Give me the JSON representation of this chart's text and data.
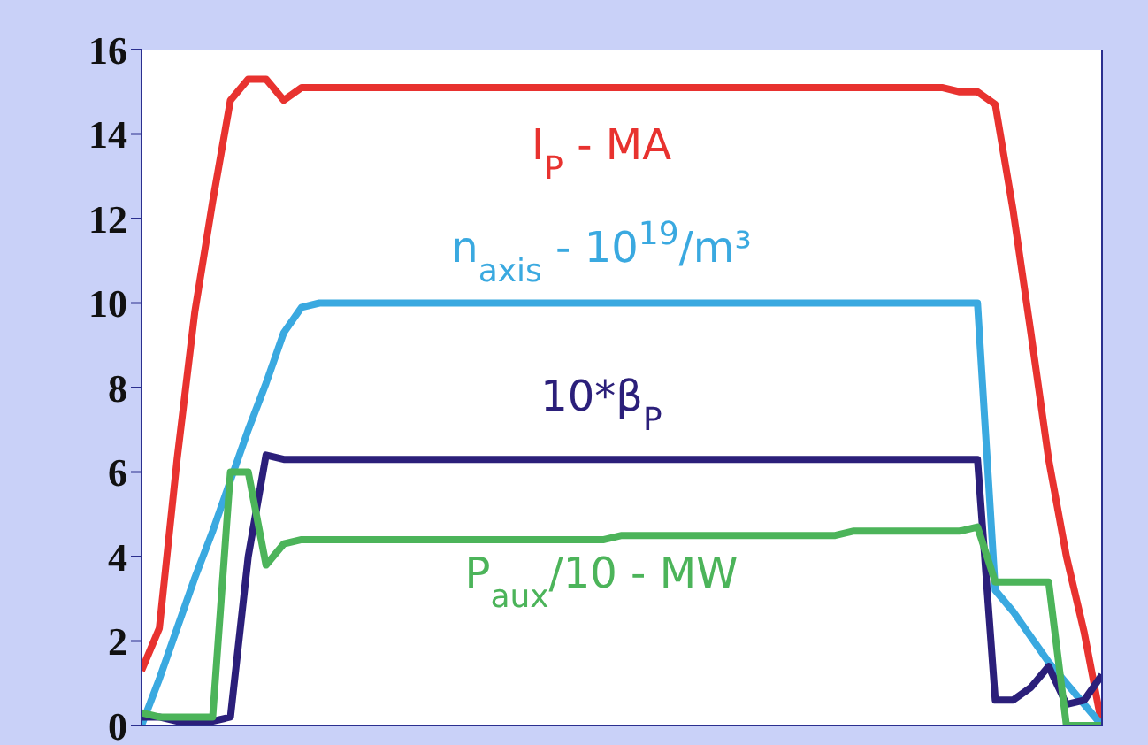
{
  "chart_data": {
    "type": "line",
    "categories": [
      null,
      null,
      null,
      null,
      null,
      null,
      null,
      null,
      null,
      null,
      null,
      null,
      null,
      null,
      null,
      null,
      null,
      null,
      null,
      null,
      null,
      null,
      null,
      null,
      null,
      null,
      null,
      null,
      null,
      null,
      null,
      null,
      null,
      null,
      null,
      null,
      null,
      null,
      null,
      null,
      null,
      null,
      null,
      null,
      null,
      null,
      null,
      null,
      null,
      null,
      null,
      null,
      null,
      null,
      null
    ],
    "ylim": [
      0,
      16
    ],
    "yticks": [
      0,
      2,
      4,
      6,
      8,
      10,
      12,
      14,
      16
    ],
    "marker": "none",
    "line_style": "solid",
    "series": [
      {
        "name": "I$_{P}$ - MA",
        "color": "#e8322f",
        "values": [
          1.3,
          2.3,
          6.3,
          9.8,
          12.4,
          14.8,
          15.3,
          15.3,
          14.8,
          15.1,
          15.1,
          15.1,
          15.1,
          15.1,
          15.1,
          15.1,
          15.1,
          15.1,
          15.1,
          15.1,
          15.1,
          15.1,
          15.1,
          15.1,
          15.1,
          15.1,
          15.1,
          15.1,
          15.1,
          15.1,
          15.1,
          15.1,
          15.1,
          15.1,
          15.1,
          15.1,
          15.1,
          15.1,
          15.1,
          15.1,
          15.1,
          15.1,
          15.1,
          15.1,
          15.1,
          15.1,
          15.0,
          15.0,
          14.7,
          12.2,
          9.3,
          6.3,
          4.0,
          2.2,
          0
        ]
      },
      {
        "name": "n$_{axis}$ - 10$^{19}$/m³",
        "color": "#3aa9e0",
        "values": [
          0,
          1.1,
          2.3,
          3.5,
          4.6,
          5.8,
          7.0,
          8.1,
          9.3,
          9.9,
          10,
          10,
          10,
          10,
          10,
          10,
          10,
          10,
          10,
          10,
          10,
          10,
          10,
          10,
          10,
          10,
          10,
          10,
          10,
          10,
          10,
          10,
          10,
          10,
          10,
          10,
          10,
          10,
          10,
          10,
          10,
          10,
          10,
          10,
          10,
          10,
          10,
          10,
          3.2,
          2.7,
          2.1,
          1.5,
          1.0,
          0.5,
          0
        ]
      },
      {
        "name": "10*β$_{P}$",
        "color": "#2b1f7a",
        "values": [
          0.2,
          0.2,
          0.1,
          0.1,
          0.1,
          0.2,
          4.0,
          6.4,
          6.3,
          6.3,
          6.3,
          6.3,
          6.3,
          6.3,
          6.3,
          6.3,
          6.3,
          6.3,
          6.3,
          6.3,
          6.3,
          6.3,
          6.3,
          6.3,
          6.3,
          6.3,
          6.3,
          6.3,
          6.3,
          6.3,
          6.3,
          6.3,
          6.3,
          6.3,
          6.3,
          6.3,
          6.3,
          6.3,
          6.3,
          6.3,
          6.3,
          6.3,
          6.3,
          6.3,
          6.3,
          6.3,
          6.3,
          6.3,
          0.6,
          0.6,
          0.9,
          1.4,
          0.5,
          0.6,
          1.2
        ]
      },
      {
        "name": "P$_{aux}$/10 - MW",
        "color": "#4cb45a",
        "values": [
          0.3,
          0.2,
          0.2,
          0.2,
          0.2,
          6.0,
          6.0,
          3.8,
          4.3,
          4.4,
          4.4,
          4.4,
          4.4,
          4.4,
          4.4,
          4.4,
          4.4,
          4.4,
          4.4,
          4.4,
          4.4,
          4.4,
          4.4,
          4.4,
          4.4,
          4.4,
          4.4,
          4.5,
          4.5,
          4.5,
          4.5,
          4.5,
          4.5,
          4.5,
          4.5,
          4.5,
          4.5,
          4.5,
          4.5,
          4.5,
          4.6,
          4.6,
          4.6,
          4.6,
          4.6,
          4.6,
          4.6,
          4.7,
          3.4,
          3.4,
          3.4,
          3.4,
          0,
          0,
          0
        ]
      }
    ]
  }
}
